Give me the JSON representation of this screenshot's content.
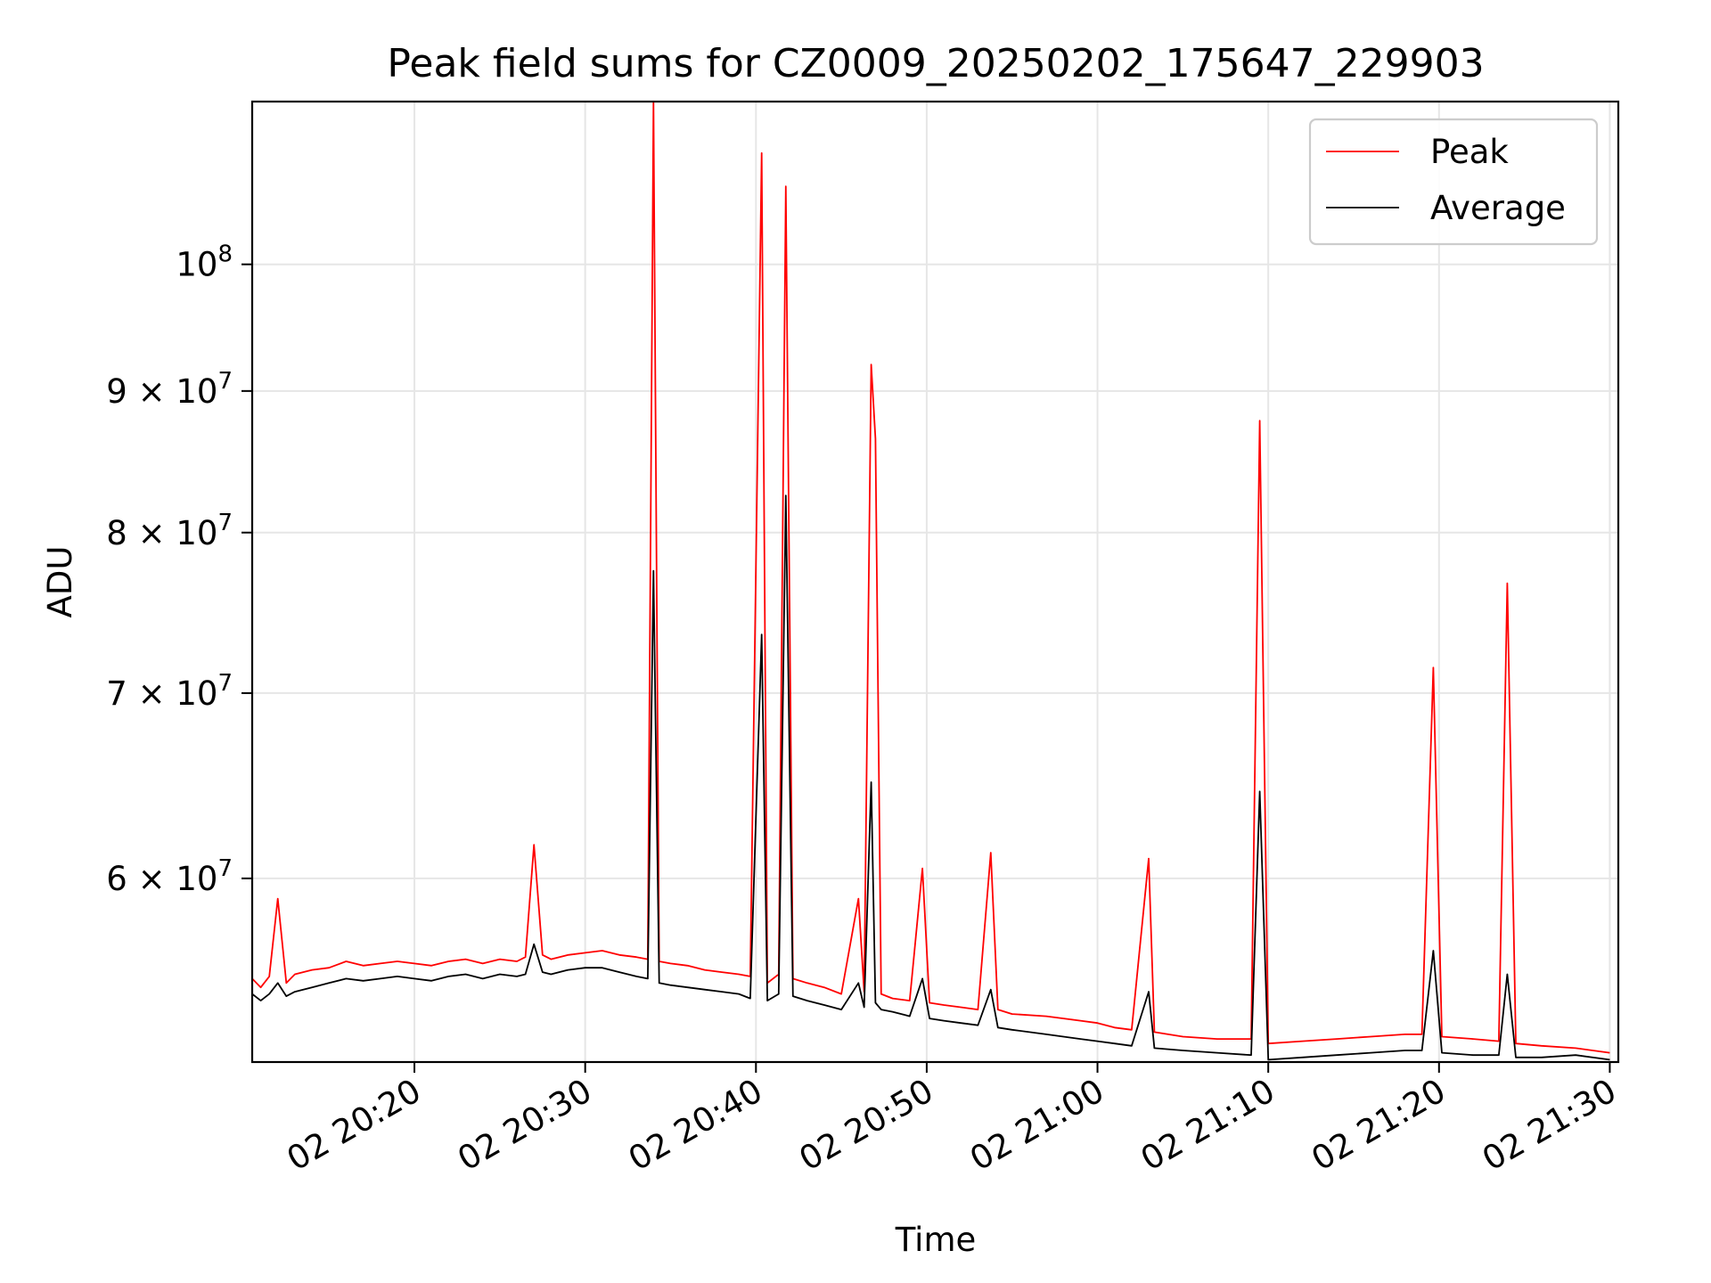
{
  "chart_data": {
    "type": "line",
    "title": "Peak field sums for CZ0009_20250202_175647_229903",
    "xlabel": "Time",
    "ylabel": "ADU",
    "x_axis": "time",
    "y_scale": "log",
    "grid": true,
    "legend_placement": "top-right",
    "xlim": [
      "2025-02-02 20:10:30",
      "2025-02-02 21:30:30"
    ],
    "ylim": [
      51500000,
      114500000
    ],
    "x_ticks": [
      "2025-02-02 20:20",
      "2025-02-02 20:30",
      "2025-02-02 20:40",
      "2025-02-02 20:50",
      "2025-02-02 21:00",
      "2025-02-02 21:10",
      "2025-02-02 21:20",
      "2025-02-02 21:30"
    ],
    "x_tick_labels": [
      "02 20:20",
      "02 20:30",
      "02 20:40",
      "02 20:50",
      "02 21:00",
      "02 21:10",
      "02 21:20",
      "02 21:30"
    ],
    "y_ticks": [
      60000000,
      70000000,
      80000000,
      90000000,
      100000000
    ],
    "y_tick_labels": [
      {
        "mantissa": "6",
        "exp": "7"
      },
      {
        "mantissa": "7",
        "exp": "7"
      },
      {
        "mantissa": "8",
        "exp": "7"
      },
      {
        "mantissa": "9",
        "exp": "7"
      },
      {
        "mantissa": "",
        "exp": "8"
      }
    ],
    "series": [
      {
        "name": "Peak",
        "color": "#ff0000",
        "points": [
          [
            "2025-02-02 20:10:30",
            55200000
          ],
          [
            "2025-02-02 20:11:00",
            54800000
          ],
          [
            "2025-02-02 20:11:30",
            55300000
          ],
          [
            "2025-02-02 20:12:00",
            59000000
          ],
          [
            "2025-02-02 20:12:30",
            55000000
          ],
          [
            "2025-02-02 20:13:00",
            55400000
          ],
          [
            "2025-02-02 20:14:00",
            55600000
          ],
          [
            "2025-02-02 20:15:00",
            55700000
          ],
          [
            "2025-02-02 20:16:00",
            56000000
          ],
          [
            "2025-02-02 20:17:00",
            55800000
          ],
          [
            "2025-02-02 20:18:00",
            55900000
          ],
          [
            "2025-02-02 20:19:00",
            56000000
          ],
          [
            "2025-02-02 20:20:00",
            55900000
          ],
          [
            "2025-02-02 20:21:00",
            55800000
          ],
          [
            "2025-02-02 20:22:00",
            56000000
          ],
          [
            "2025-02-02 20:23:00",
            56100000
          ],
          [
            "2025-02-02 20:24:00",
            55900000
          ],
          [
            "2025-02-02 20:25:00",
            56100000
          ],
          [
            "2025-02-02 20:26:00",
            56000000
          ],
          [
            "2025-02-02 20:26:30",
            56200000
          ],
          [
            "2025-02-02 20:27:00",
            61700000
          ],
          [
            "2025-02-02 20:27:30",
            56300000
          ],
          [
            "2025-02-02 20:28:00",
            56100000
          ],
          [
            "2025-02-02 20:29:00",
            56300000
          ],
          [
            "2025-02-02 20:30:00",
            56400000
          ],
          [
            "2025-02-02 20:31:00",
            56500000
          ],
          [
            "2025-02-02 20:32:00",
            56300000
          ],
          [
            "2025-02-02 20:33:00",
            56200000
          ],
          [
            "2025-02-02 20:33:40",
            56100000
          ],
          [
            "2025-02-02 20:34:00",
            114500000
          ],
          [
            "2025-02-02 20:34:20",
            56000000
          ],
          [
            "2025-02-02 20:35:00",
            55900000
          ],
          [
            "2025-02-02 20:36:00",
            55800000
          ],
          [
            "2025-02-02 20:37:00",
            55600000
          ],
          [
            "2025-02-02 20:38:00",
            55500000
          ],
          [
            "2025-02-02 20:39:00",
            55400000
          ],
          [
            "2025-02-02 20:39:40",
            55300000
          ],
          [
            "2025-02-02 20:40:20",
            109700000
          ],
          [
            "2025-02-02 20:40:40",
            55000000
          ],
          [
            "2025-02-02 20:41:20",
            55400000
          ],
          [
            "2025-02-02 20:41:45",
            106700000
          ],
          [
            "2025-02-02 20:42:10",
            55200000
          ],
          [
            "2025-02-02 20:43:00",
            55000000
          ],
          [
            "2025-02-02 20:44:00",
            54800000
          ],
          [
            "2025-02-02 20:45:00",
            54500000
          ],
          [
            "2025-02-02 20:46:00",
            59000000
          ],
          [
            "2025-02-02 20:46:20",
            54600000
          ],
          [
            "2025-02-02 20:46:45",
            92000000
          ],
          [
            "2025-02-02 20:47:00",
            86500000
          ],
          [
            "2025-02-02 20:47:20",
            54500000
          ],
          [
            "2025-02-02 20:48:00",
            54300000
          ],
          [
            "2025-02-02 20:49:00",
            54200000
          ],
          [
            "2025-02-02 20:49:45",
            60500000
          ],
          [
            "2025-02-02 20:50:10",
            54100000
          ],
          [
            "2025-02-02 20:51:00",
            54000000
          ],
          [
            "2025-02-02 20:52:00",
            53900000
          ],
          [
            "2025-02-02 20:53:00",
            53800000
          ],
          [
            "2025-02-02 20:53:45",
            61300000
          ],
          [
            "2025-02-02 20:54:10",
            53800000
          ],
          [
            "2025-02-02 20:55:00",
            53600000
          ],
          [
            "2025-02-02 20:57:00",
            53500000
          ],
          [
            "2025-02-02 20:59:00",
            53300000
          ],
          [
            "2025-02-02 21:00:00",
            53200000
          ],
          [
            "2025-02-02 21:01:00",
            53000000
          ],
          [
            "2025-02-02 21:02:00",
            52900000
          ],
          [
            "2025-02-02 21:03:00",
            61000000
          ],
          [
            "2025-02-02 21:03:20",
            52800000
          ],
          [
            "2025-02-02 21:05:00",
            52600000
          ],
          [
            "2025-02-02 21:07:00",
            52500000
          ],
          [
            "2025-02-02 21:09:00",
            52500000
          ],
          [
            "2025-02-02 21:09:30",
            87800000
          ],
          [
            "2025-02-02 21:10:00",
            52300000
          ],
          [
            "2025-02-02 21:12:00",
            52400000
          ],
          [
            "2025-02-02 21:14:00",
            52500000
          ],
          [
            "2025-02-02 21:16:00",
            52600000
          ],
          [
            "2025-02-02 21:18:00",
            52700000
          ],
          [
            "2025-02-02 21:19:00",
            52700000
          ],
          [
            "2025-02-02 21:19:40",
            71500000
          ],
          [
            "2025-02-02 21:20:10",
            52600000
          ],
          [
            "2025-02-02 21:22:00",
            52500000
          ],
          [
            "2025-02-02 21:23:30",
            52400000
          ],
          [
            "2025-02-02 21:24:00",
            76700000
          ],
          [
            "2025-02-02 21:24:30",
            52300000
          ],
          [
            "2025-02-02 21:26:00",
            52200000
          ],
          [
            "2025-02-02 21:28:00",
            52100000
          ],
          [
            "2025-02-02 21:30:00",
            51900000
          ]
        ]
      },
      {
        "name": "Average",
        "color": "#000000",
        "points": [
          [
            "2025-02-02 20:10:30",
            54500000
          ],
          [
            "2025-02-02 20:11:00",
            54200000
          ],
          [
            "2025-02-02 20:11:30",
            54500000
          ],
          [
            "2025-02-02 20:12:00",
            55000000
          ],
          [
            "2025-02-02 20:12:30",
            54400000
          ],
          [
            "2025-02-02 20:13:00",
            54600000
          ],
          [
            "2025-02-02 20:14:00",
            54800000
          ],
          [
            "2025-02-02 20:15:00",
            55000000
          ],
          [
            "2025-02-02 20:16:00",
            55200000
          ],
          [
            "2025-02-02 20:17:00",
            55100000
          ],
          [
            "2025-02-02 20:18:00",
            55200000
          ],
          [
            "2025-02-02 20:19:00",
            55300000
          ],
          [
            "2025-02-02 20:20:00",
            55200000
          ],
          [
            "2025-02-02 20:21:00",
            55100000
          ],
          [
            "2025-02-02 20:22:00",
            55300000
          ],
          [
            "2025-02-02 20:23:00",
            55400000
          ],
          [
            "2025-02-02 20:24:00",
            55200000
          ],
          [
            "2025-02-02 20:25:00",
            55400000
          ],
          [
            "2025-02-02 20:26:00",
            55300000
          ],
          [
            "2025-02-02 20:26:30",
            55400000
          ],
          [
            "2025-02-02 20:27:00",
            56800000
          ],
          [
            "2025-02-02 20:27:30",
            55500000
          ],
          [
            "2025-02-02 20:28:00",
            55400000
          ],
          [
            "2025-02-02 20:29:00",
            55600000
          ],
          [
            "2025-02-02 20:30:00",
            55700000
          ],
          [
            "2025-02-02 20:31:00",
            55700000
          ],
          [
            "2025-02-02 20:32:00",
            55500000
          ],
          [
            "2025-02-02 20:33:00",
            55300000
          ],
          [
            "2025-02-02 20:33:40",
            55200000
          ],
          [
            "2025-02-02 20:34:00",
            77500000
          ],
          [
            "2025-02-02 20:34:20",
            55000000
          ],
          [
            "2025-02-02 20:35:00",
            54900000
          ],
          [
            "2025-02-02 20:36:00",
            54800000
          ],
          [
            "2025-02-02 20:37:00",
            54700000
          ],
          [
            "2025-02-02 20:38:00",
            54600000
          ],
          [
            "2025-02-02 20:39:00",
            54500000
          ],
          [
            "2025-02-02 20:39:40",
            54300000
          ],
          [
            "2025-02-02 20:40:20",
            73500000
          ],
          [
            "2025-02-02 20:40:40",
            54200000
          ],
          [
            "2025-02-02 20:41:20",
            54500000
          ],
          [
            "2025-02-02 20:41:45",
            82500000
          ],
          [
            "2025-02-02 20:42:10",
            54400000
          ],
          [
            "2025-02-02 20:43:00",
            54200000
          ],
          [
            "2025-02-02 20:44:00",
            54000000
          ],
          [
            "2025-02-02 20:45:00",
            53800000
          ],
          [
            "2025-02-02 20:46:00",
            55000000
          ],
          [
            "2025-02-02 20:46:20",
            53900000
          ],
          [
            "2025-02-02 20:46:45",
            65000000
          ],
          [
            "2025-02-02 20:47:00",
            54100000
          ],
          [
            "2025-02-02 20:47:20",
            53800000
          ],
          [
            "2025-02-02 20:48:00",
            53700000
          ],
          [
            "2025-02-02 20:49:00",
            53500000
          ],
          [
            "2025-02-02 20:49:45",
            55200000
          ],
          [
            "2025-02-02 20:50:10",
            53400000
          ],
          [
            "2025-02-02 20:51:00",
            53300000
          ],
          [
            "2025-02-02 20:52:00",
            53200000
          ],
          [
            "2025-02-02 20:53:00",
            53100000
          ],
          [
            "2025-02-02 20:53:45",
            54700000
          ],
          [
            "2025-02-02 20:54:10",
            53000000
          ],
          [
            "2025-02-02 20:55:00",
            52900000
          ],
          [
            "2025-02-02 20:57:00",
            52700000
          ],
          [
            "2025-02-02 20:59:00",
            52500000
          ],
          [
            "2025-02-02 21:00:00",
            52400000
          ],
          [
            "2025-02-02 21:01:00",
            52300000
          ],
          [
            "2025-02-02 21:02:00",
            52200000
          ],
          [
            "2025-02-02 21:03:00",
            54600000
          ],
          [
            "2025-02-02 21:03:20",
            52100000
          ],
          [
            "2025-02-02 21:05:00",
            52000000
          ],
          [
            "2025-02-02 21:07:00",
            51900000
          ],
          [
            "2025-02-02 21:09:00",
            51800000
          ],
          [
            "2025-02-02 21:09:30",
            64500000
          ],
          [
            "2025-02-02 21:10:00",
            51600000
          ],
          [
            "2025-02-02 21:12:00",
            51700000
          ],
          [
            "2025-02-02 21:14:00",
            51800000
          ],
          [
            "2025-02-02 21:16:00",
            51900000
          ],
          [
            "2025-02-02 21:18:00",
            52000000
          ],
          [
            "2025-02-02 21:19:00",
            52000000
          ],
          [
            "2025-02-02 21:19:40",
            56500000
          ],
          [
            "2025-02-02 21:20:10",
            51900000
          ],
          [
            "2025-02-02 21:22:00",
            51800000
          ],
          [
            "2025-02-02 21:23:30",
            51800000
          ],
          [
            "2025-02-02 21:24:00",
            55400000
          ],
          [
            "2025-02-02 21:24:30",
            51700000
          ],
          [
            "2025-02-02 21:26:00",
            51700000
          ],
          [
            "2025-02-02 21:28:00",
            51800000
          ],
          [
            "2025-02-02 21:30:00",
            51600000
          ]
        ]
      }
    ]
  }
}
